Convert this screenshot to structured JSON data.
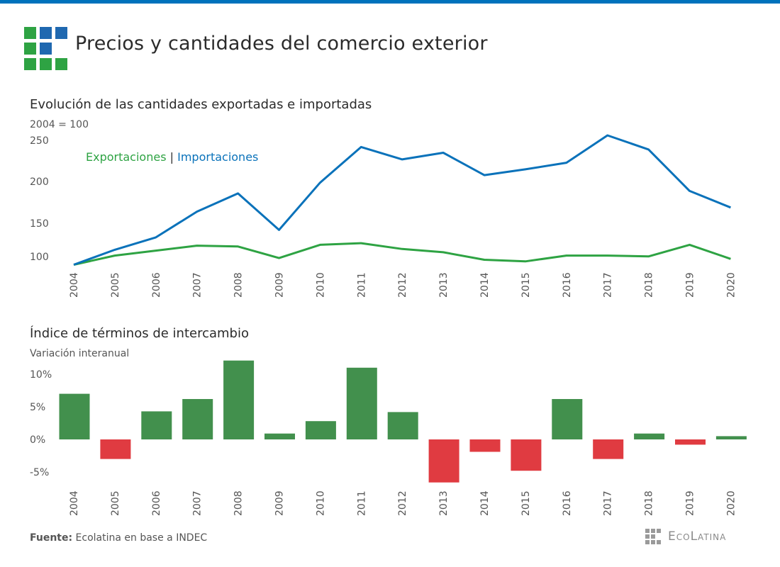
{
  "header": {
    "title": "Precios y cantidades del comercio exterior",
    "logo_colors": [
      "#2ea343",
      "#1f68b0",
      "#1f68b0",
      "#2ea343",
      "#1f68b0",
      null,
      "#2ea343",
      "#2ea343",
      "#2ea343"
    ],
    "topbar_color": "#0072bc"
  },
  "chart_data": [
    {
      "type": "line",
      "title": "Evolución de las cantidades exportadas e importadas",
      "subtitle": "2004 = 100",
      "xlabel": "",
      "ylabel": "",
      "x": [
        "2004",
        "2005",
        "2006",
        "2007",
        "2008",
        "2009",
        "2010",
        "2011",
        "2012",
        "2013",
        "2014",
        "2015",
        "2016",
        "2017",
        "2018",
        "2019",
        "2020"
      ],
      "yticks": [
        "250",
        "200",
        "150",
        "100"
      ],
      "ylim": [
        100,
        260
      ],
      "legend": {
        "placement": "top-left",
        "separator": "|"
      },
      "grid": false,
      "series": [
        {
          "name": "Exportaciones",
          "color": "#2ea343",
          "values": [
            100,
            111,
            117,
            123,
            122,
            108,
            124,
            126,
            119,
            115,
            106,
            104,
            111,
            111,
            110,
            124,
            107
          ]
        },
        {
          "name": "Importaciones",
          "color": "#0a72ba",
          "values": [
            100,
            118,
            133,
            164,
            186,
            142,
            199,
            242,
            227,
            235,
            208,
            215,
            223,
            256,
            239,
            189,
            169
          ]
        }
      ]
    },
    {
      "type": "bar",
      "title": "Índice de términos de intercambio",
      "subtitle": "Variación interanual",
      "xlabel": "",
      "ylabel": "",
      "categories": [
        "2004",
        "2005",
        "2006",
        "2007",
        "2008",
        "2009",
        "2010",
        "2011",
        "2012",
        "2013",
        "2014",
        "2015",
        "2016",
        "2017",
        "2018",
        "2019",
        "2020"
      ],
      "values": [
        7.0,
        -3.0,
        4.3,
        6.2,
        12.1,
        0.9,
        2.8,
        11.0,
        4.2,
        -6.6,
        -1.9,
        -4.8,
        6.2,
        -3.0,
        0.9,
        -0.8,
        0.5
      ],
      "unit": "%",
      "yticks": [
        "10%",
        "5%",
        "0%",
        "-5%"
      ],
      "ytick_values": [
        10,
        5,
        0,
        -5
      ],
      "ylim": [
        -7,
        12.5
      ],
      "positive_color": "#42904d",
      "negative_color": "#e03b41",
      "grid": false
    }
  ],
  "footer": {
    "source_label": "Fuente:",
    "source_text": "Ecolatina en base a INDEC",
    "brand": "EcoLatina"
  }
}
